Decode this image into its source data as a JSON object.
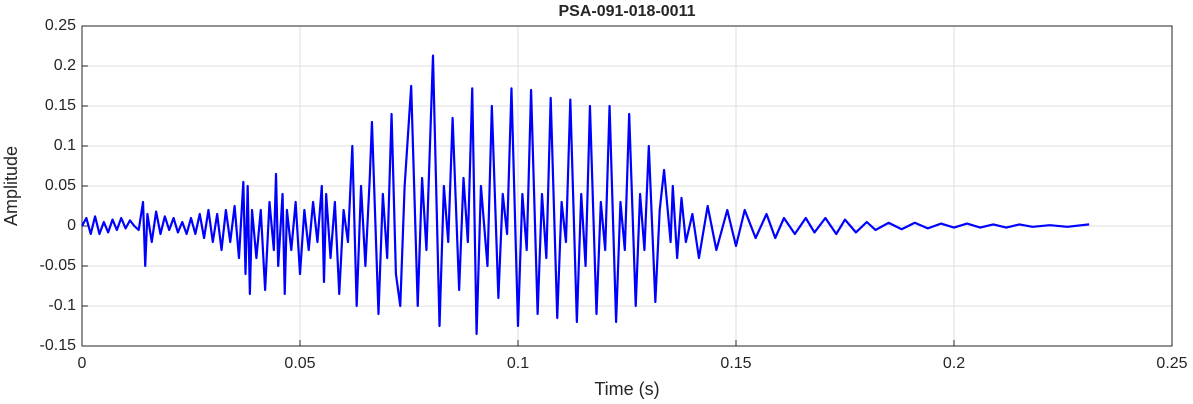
{
  "chart_data": {
    "type": "line",
    "title": "PSA-091-018-0011",
    "x_label": "Time (s)",
    "y_label": "Amplitude",
    "xlim": [
      0,
      0.25
    ],
    "xticks": [
      0,
      0.05,
      0.1,
      0.15,
      0.2,
      0.25
    ],
    "ylim": [
      -0.15,
      0.25
    ],
    "yticks": [
      -0.15,
      -0.1,
      -0.05,
      0,
      0.05,
      0.1,
      0.15,
      0.2,
      0.25
    ],
    "grid": true,
    "series": [
      {
        "color": "#0000ff",
        "x": [
          0,
          0.001,
          0.002,
          0.003,
          0.004,
          0.005,
          0.006,
          0.007,
          0.008,
          0.009,
          0.01,
          0.011,
          0.012,
          0.013,
          0.014,
          0.0145,
          0.015,
          0.016,
          0.017,
          0.018,
          0.019,
          0.02,
          0.021,
          0.022,
          0.023,
          0.024,
          0.025,
          0.026,
          0.027,
          0.028,
          0.029,
          0.03,
          0.031,
          0.032,
          0.033,
          0.034,
          0.035,
          0.036,
          0.037,
          0.0375,
          0.038,
          0.0385,
          0.039,
          0.04,
          0.041,
          0.042,
          0.043,
          0.044,
          0.0445,
          0.045,
          0.046,
          0.0465,
          0.047,
          0.048,
          0.049,
          0.05,
          0.051,
          0.052,
          0.053,
          0.054,
          0.055,
          0.0555,
          0.056,
          0.057,
          0.058,
          0.059,
          0.06,
          0.061,
          0.062,
          0.063,
          0.064,
          0.065,
          0.066,
          0.0665,
          0.068,
          0.069,
          0.07,
          0.071,
          0.072,
          0.073,
          0.074,
          0.0755,
          0.077,
          0.078,
          0.079,
          0.0805,
          0.082,
          0.083,
          0.084,
          0.085,
          0.0865,
          0.0875,
          0.0885,
          0.0895,
          0.0905,
          0.0915,
          0.093,
          0.094,
          0.0955,
          0.0965,
          0.0975,
          0.0985,
          0.1,
          0.101,
          0.102,
          0.103,
          0.1045,
          0.1055,
          0.1065,
          0.1075,
          0.109,
          0.11,
          0.111,
          0.112,
          0.1135,
          0.1145,
          0.1155,
          0.1165,
          0.118,
          0.119,
          0.12,
          0.121,
          0.1225,
          0.1235,
          0.1245,
          0.1255,
          0.127,
          0.128,
          0.129,
          0.13,
          0.1315,
          0.1325,
          0.1335,
          0.135,
          0.1355,
          0.1365,
          0.1375,
          0.1385,
          0.14,
          0.1415,
          0.1435,
          0.1455,
          0.148,
          0.15,
          0.152,
          0.1545,
          0.157,
          0.159,
          0.161,
          0.1635,
          0.166,
          0.168,
          0.1705,
          0.173,
          0.175,
          0.1775,
          0.18,
          0.182,
          0.185,
          0.188,
          0.191,
          0.194,
          0.197,
          0.2,
          0.203,
          0.206,
          0.209,
          0.212,
          0.215,
          0.218,
          0.222,
          0.226,
          0.231
        ],
        "values": [
          0,
          0.01,
          -0.01,
          0.012,
          -0.01,
          0.005,
          -0.008,
          0.008,
          -0.005,
          0.01,
          -0.003,
          0.007,
          0,
          -0.005,
          0.03,
          -0.05,
          0.015,
          -0.02,
          0.018,
          -0.01,
          0.012,
          -0.005,
          0.01,
          -0.008,
          0.005,
          -0.01,
          0.01,
          -0.01,
          0.015,
          -0.015,
          0.02,
          -0.02,
          0.015,
          -0.03,
          0.02,
          -0.02,
          0.025,
          -0.04,
          0.055,
          -0.06,
          0.05,
          -0.085,
          0.02,
          -0.04,
          0.02,
          -0.08,
          0.03,
          -0.03,
          0.065,
          -0.05,
          0.04,
          -0.085,
          0.02,
          -0.03,
          0.03,
          -0.06,
          0.02,
          -0.03,
          0.03,
          -0.02,
          0.05,
          -0.07,
          0.04,
          -0.04,
          0.03,
          -0.085,
          0.02,
          -0.02,
          0.1,
          -0.1,
          0.05,
          -0.05,
          0.06,
          0.13,
          -0.11,
          0.04,
          -0.04,
          0.14,
          -0.06,
          -0.1,
          0.05,
          0.175,
          -0.1,
          0.06,
          -0.03,
          0.213,
          -0.125,
          0.05,
          -0.02,
          0.135,
          -0.08,
          0.06,
          -0.02,
          0.172,
          -0.135,
          0.05,
          -0.05,
          0.15,
          -0.09,
          0.04,
          -0.01,
          0.172,
          -0.125,
          0.04,
          -0.03,
          0.17,
          -0.11,
          0.04,
          -0.04,
          0.16,
          -0.115,
          0.03,
          -0.02,
          0.158,
          -0.12,
          0.04,
          -0.05,
          0.15,
          -0.11,
          0.03,
          -0.03,
          0.15,
          -0.12,
          0.03,
          -0.03,
          0.14,
          -0.1,
          0.04,
          -0.03,
          0.1,
          -0.095,
          0.02,
          0.07,
          -0.02,
          0.05,
          -0.04,
          0.035,
          -0.02,
          0.015,
          -0.04,
          0.025,
          -0.03,
          0.02,
          -0.025,
          0.02,
          -0.015,
          0.015,
          -0.015,
          0.01,
          -0.01,
          0.01,
          -0.008,
          0.01,
          -0.01,
          0.008,
          -0.008,
          0.005,
          -0.005,
          0.004,
          -0.004,
          0.004,
          -0.003,
          0.003,
          -0.002,
          0.003,
          -0.002,
          0.002,
          -0.002,
          0.002,
          -0.001,
          0.001,
          -0.001,
          0.002
        ]
      }
    ]
  }
}
